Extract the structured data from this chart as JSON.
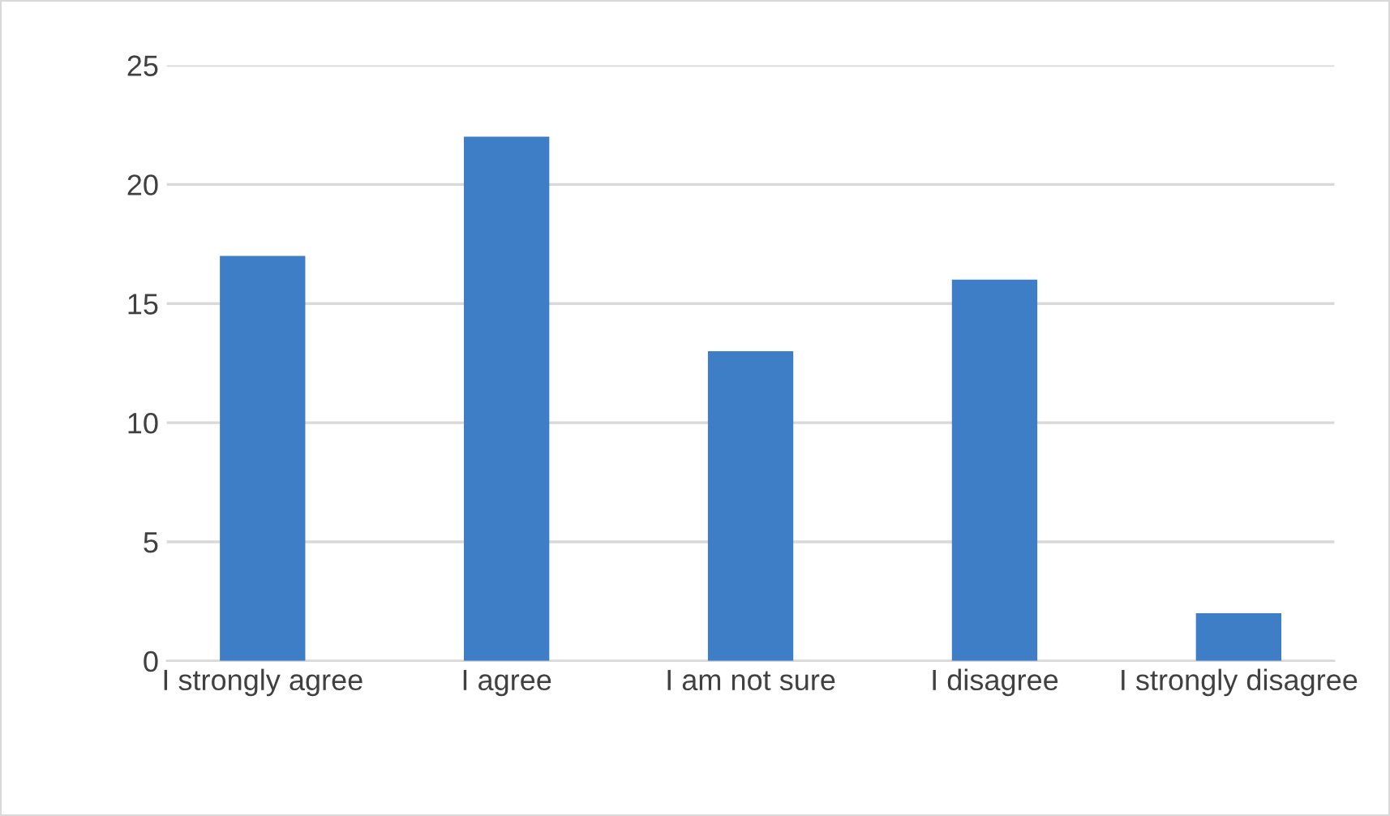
{
  "chart_data": {
    "type": "bar",
    "categories": [
      "I strongly agree",
      "I agree",
      "I am not sure",
      "I disagree",
      "I strongly disagree"
    ],
    "values": [
      17,
      22,
      13,
      16,
      2
    ],
    "color": "#3d7ec6",
    "ylim": [
      0,
      25
    ],
    "yticks": [
      0,
      5,
      10,
      15,
      20,
      25
    ],
    "grid": "y",
    "legend": false
  }
}
